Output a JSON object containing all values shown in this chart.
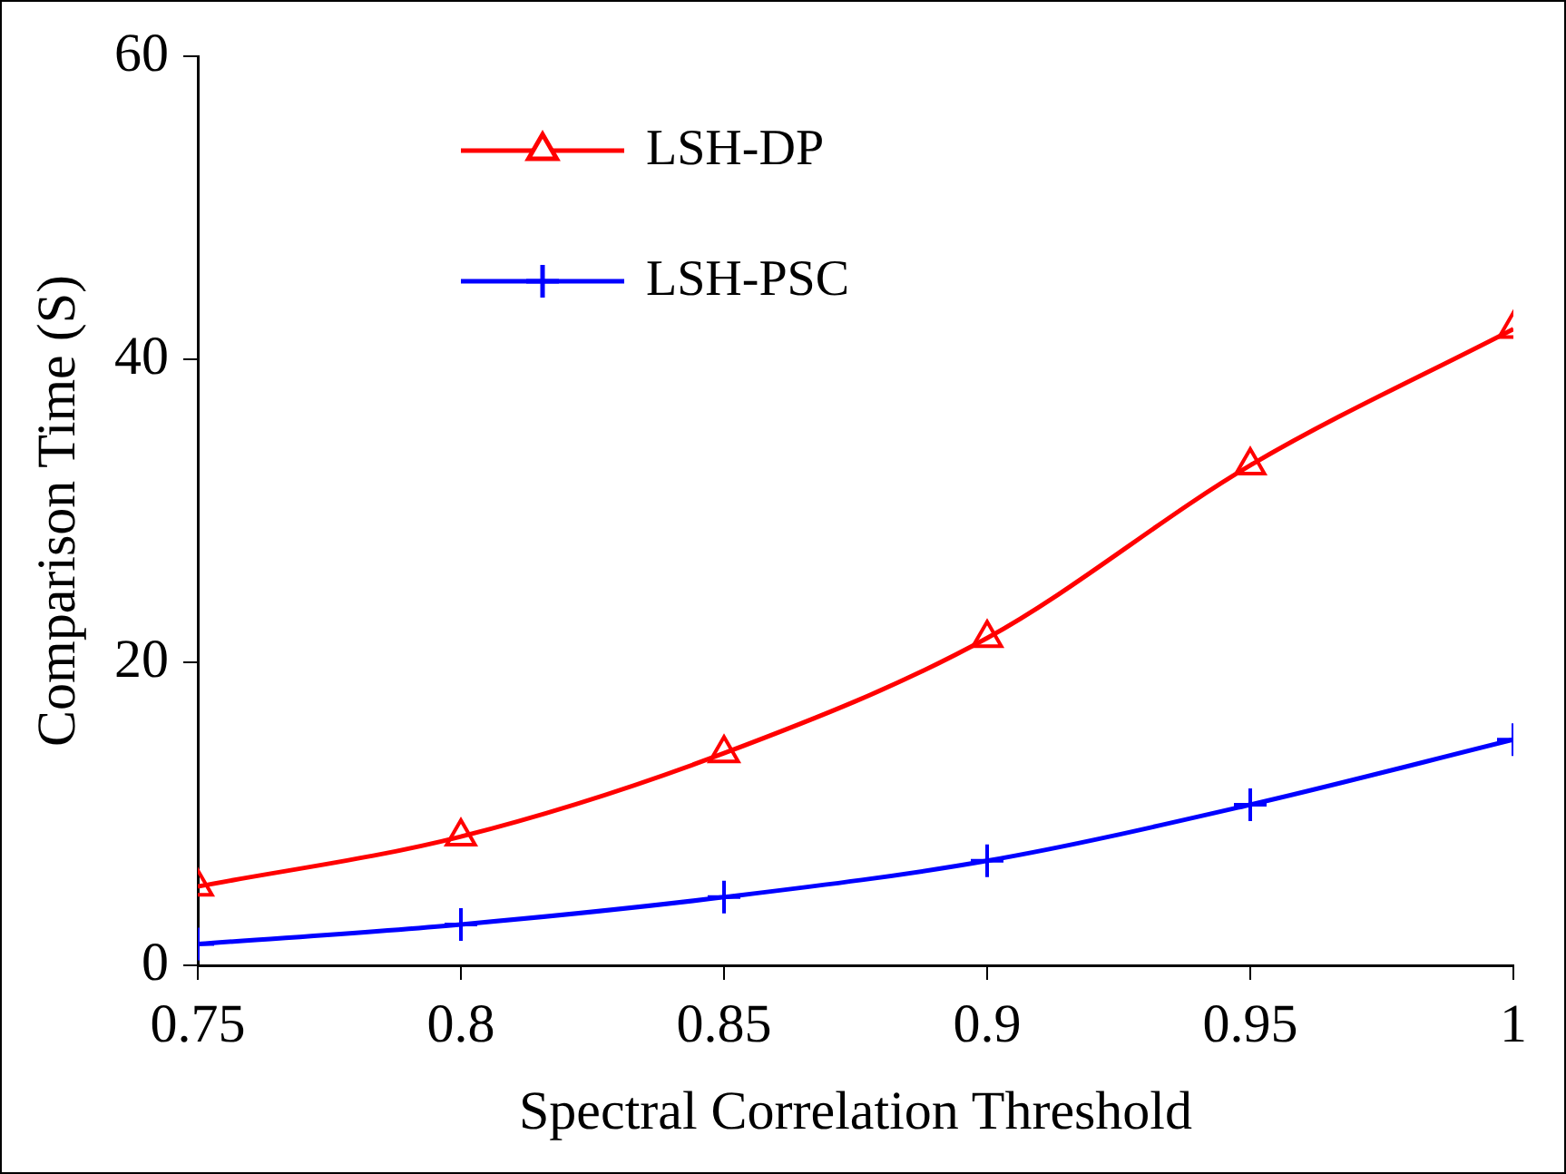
{
  "chart_data": {
    "type": "line",
    "xlabel": "Spectral Correlation Threshold",
    "ylabel": "Comparison Time (S)",
    "x": [
      0.75,
      0.8,
      0.85,
      0.9,
      0.95,
      1
    ],
    "xlim": [
      0.75,
      1
    ],
    "xticks": [
      0.75,
      0.8,
      0.85,
      0.9,
      0.95,
      1
    ],
    "ylim": [
      0,
      60
    ],
    "yticks": [
      0,
      20,
      40,
      60
    ],
    "grid": false,
    "legend": "top left",
    "series": [
      {
        "name": "LSH-DP",
        "color": "#ff0000",
        "marker": "triangle",
        "values": [
          5.2,
          8.5,
          14,
          21.6,
          33,
          42
        ]
      },
      {
        "name": "LSH-PSC",
        "color": "#0000ff",
        "marker": "cross",
        "values": [
          1.4,
          2.7,
          4.5,
          6.9,
          10.6,
          14.9
        ]
      }
    ]
  }
}
